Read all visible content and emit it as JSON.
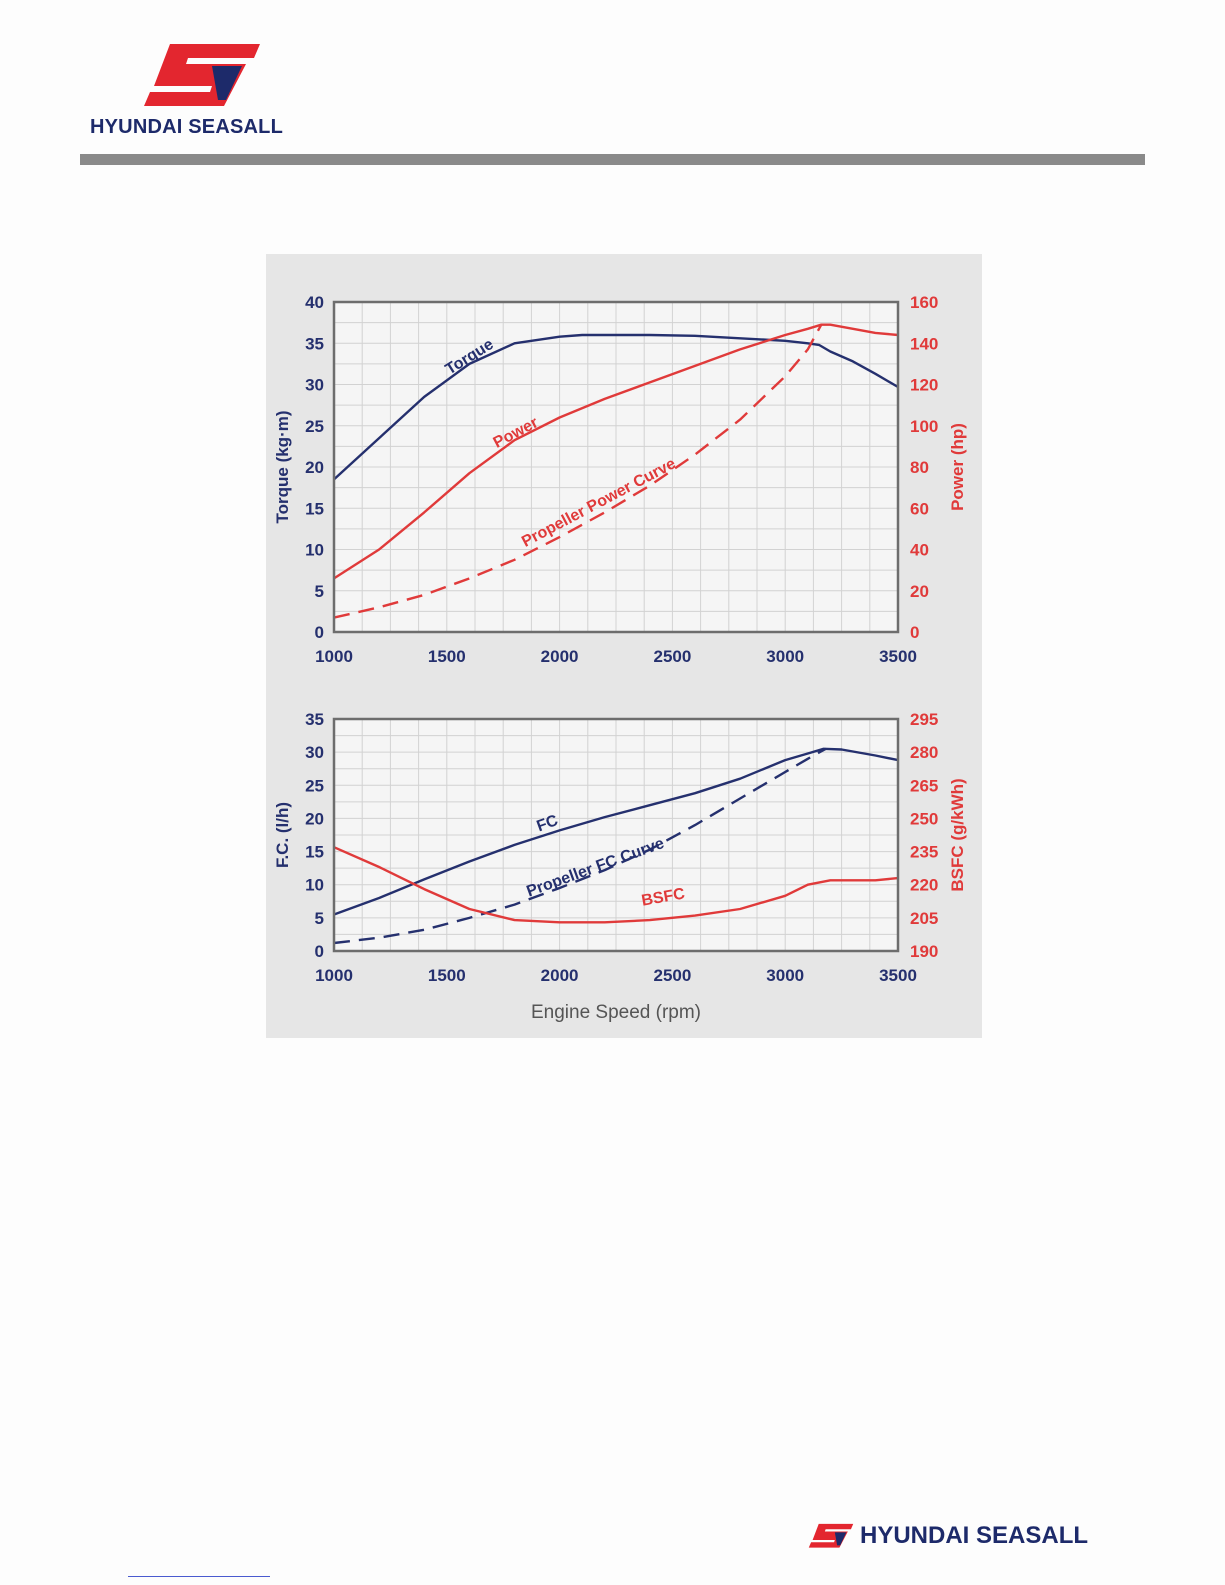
{
  "header": {
    "brand": "HYUNDAI SEASALL",
    "logo_icon": "hyundai-seasall-logo-icon",
    "brand_colors": {
      "red": "#e3262f",
      "navy": "#1d2a6a"
    }
  },
  "footer": {
    "brand": "HYUNDAI SEASALL"
  },
  "colors": {
    "navy": "#25306e",
    "red": "#e03a3a",
    "panel": "#e6e6e6",
    "plot_bg": "#f5f5f5",
    "grid": "#d2d2d2"
  },
  "chart_data": [
    {
      "type": "line",
      "xlabel": "",
      "ylabel_left": "Torque (kg·m)",
      "ylabel_right": "Power (hp)",
      "xlim": [
        1000,
        3500
      ],
      "ylim_left": [
        0,
        40
      ],
      "ylim_right": [
        0,
        160
      ],
      "x_ticks": [
        "1000",
        "1500",
        "2000",
        "2500",
        "3000",
        "3500"
      ],
      "yticks_left": [
        "0",
        "5",
        "10",
        "15",
        "20",
        "25",
        "30",
        "35",
        "40"
      ],
      "yticks_right": [
        "0",
        "20",
        "40",
        "60",
        "80",
        "100",
        "120",
        "140",
        "160"
      ],
      "grid": true,
      "series": [
        {
          "name": "Torque",
          "axis": "left",
          "color": "#25306e",
          "dashed": false,
          "x": [
            1000,
            1200,
            1400,
            1600,
            1800,
            2000,
            2100,
            2400,
            2600,
            2800,
            3000,
            3100,
            3150,
            3200,
            3300,
            3400,
            3500
          ],
          "y": [
            18.5,
            23.5,
            28.5,
            32.5,
            35.0,
            35.8,
            36.0,
            36.0,
            35.9,
            35.6,
            35.3,
            35.0,
            34.8,
            34.0,
            32.8,
            31.3,
            29.7
          ]
        },
        {
          "name": "Power",
          "axis": "right",
          "color": "#e03a3a",
          "dashed": false,
          "x": [
            1000,
            1200,
            1400,
            1600,
            1800,
            2000,
            2200,
            2400,
            2600,
            2800,
            3000,
            3100,
            3160,
            3200,
            3300,
            3400,
            3500
          ],
          "y": [
            26,
            40,
            58,
            77,
            93,
            104,
            113,
            121,
            129,
            137,
            144,
            147,
            149,
            149,
            147,
            145,
            144
          ]
        },
        {
          "name": "Propeller Power Curve",
          "axis": "right",
          "color": "#e03a3a",
          "dashed": true,
          "x": [
            1000,
            1200,
            1400,
            1600,
            1800,
            2000,
            2200,
            2400,
            2600,
            2800,
            3000,
            3100,
            3160
          ],
          "y": [
            7,
            12,
            18,
            26,
            35,
            46,
            58,
            71,
            86,
            103,
            124,
            137,
            149
          ]
        }
      ],
      "annotations": [
        {
          "text": "Torque",
          "color": "navy"
        },
        {
          "text": "Power",
          "color": "red"
        },
        {
          "text": "Propeller Power Curve",
          "color": "red"
        }
      ]
    },
    {
      "type": "line",
      "xlabel": "Engine Speed (rpm)",
      "ylabel_left": "F.C. (l/h)",
      "ylabel_right": "BSFC (g/kWh)",
      "xlim": [
        1000,
        3500
      ],
      "ylim_left": [
        0,
        35
      ],
      "ylim_right": [
        190,
        295
      ],
      "x_ticks": [
        "1000",
        "1500",
        "2000",
        "2500",
        "3000",
        "3500"
      ],
      "yticks_left": [
        "0",
        "5",
        "10",
        "15",
        "20",
        "25",
        "30",
        "35"
      ],
      "yticks_right": [
        "190",
        "205",
        "220",
        "235",
        "250",
        "265",
        "280",
        "295"
      ],
      "grid": true,
      "series": [
        {
          "name": "FC",
          "axis": "left",
          "color": "#25306e",
          "dashed": false,
          "x": [
            1000,
            1200,
            1400,
            1600,
            1800,
            2000,
            2200,
            2400,
            2600,
            2800,
            3000,
            3100,
            3170,
            3250,
            3400,
            3500
          ],
          "y": [
            5.5,
            8.0,
            10.8,
            13.5,
            16.0,
            18.2,
            20.2,
            22.0,
            23.8,
            26.0,
            28.8,
            29.8,
            30.5,
            30.4,
            29.5,
            28.8
          ]
        },
        {
          "name": "Propeller FC Curve",
          "axis": "left",
          "color": "#25306e",
          "dashed": true,
          "x": [
            1000,
            1200,
            1400,
            1600,
            1800,
            2000,
            2200,
            2400,
            2600,
            2800,
            3000,
            3100,
            3180
          ],
          "y": [
            1.2,
            2.0,
            3.2,
            5.0,
            7.0,
            9.5,
            12.2,
            15.3,
            19.0,
            23.0,
            27.0,
            29.0,
            30.5
          ]
        },
        {
          "name": "BSFC",
          "axis": "right",
          "color": "#e03a3a",
          "dashed": false,
          "x": [
            1000,
            1200,
            1400,
            1600,
            1800,
            2000,
            2200,
            2400,
            2600,
            2800,
            3000,
            3100,
            3200,
            3300,
            3400,
            3500
          ],
          "y": [
            237,
            228,
            218,
            209,
            204,
            203,
            203,
            204,
            206,
            209,
            215,
            220,
            222,
            222,
            222,
            223
          ]
        }
      ],
      "annotations": [
        {
          "text": "FC",
          "color": "navy"
        },
        {
          "text": "Propeller FC Curve",
          "color": "navy"
        },
        {
          "text": "BSFC",
          "color": "red"
        }
      ]
    }
  ]
}
